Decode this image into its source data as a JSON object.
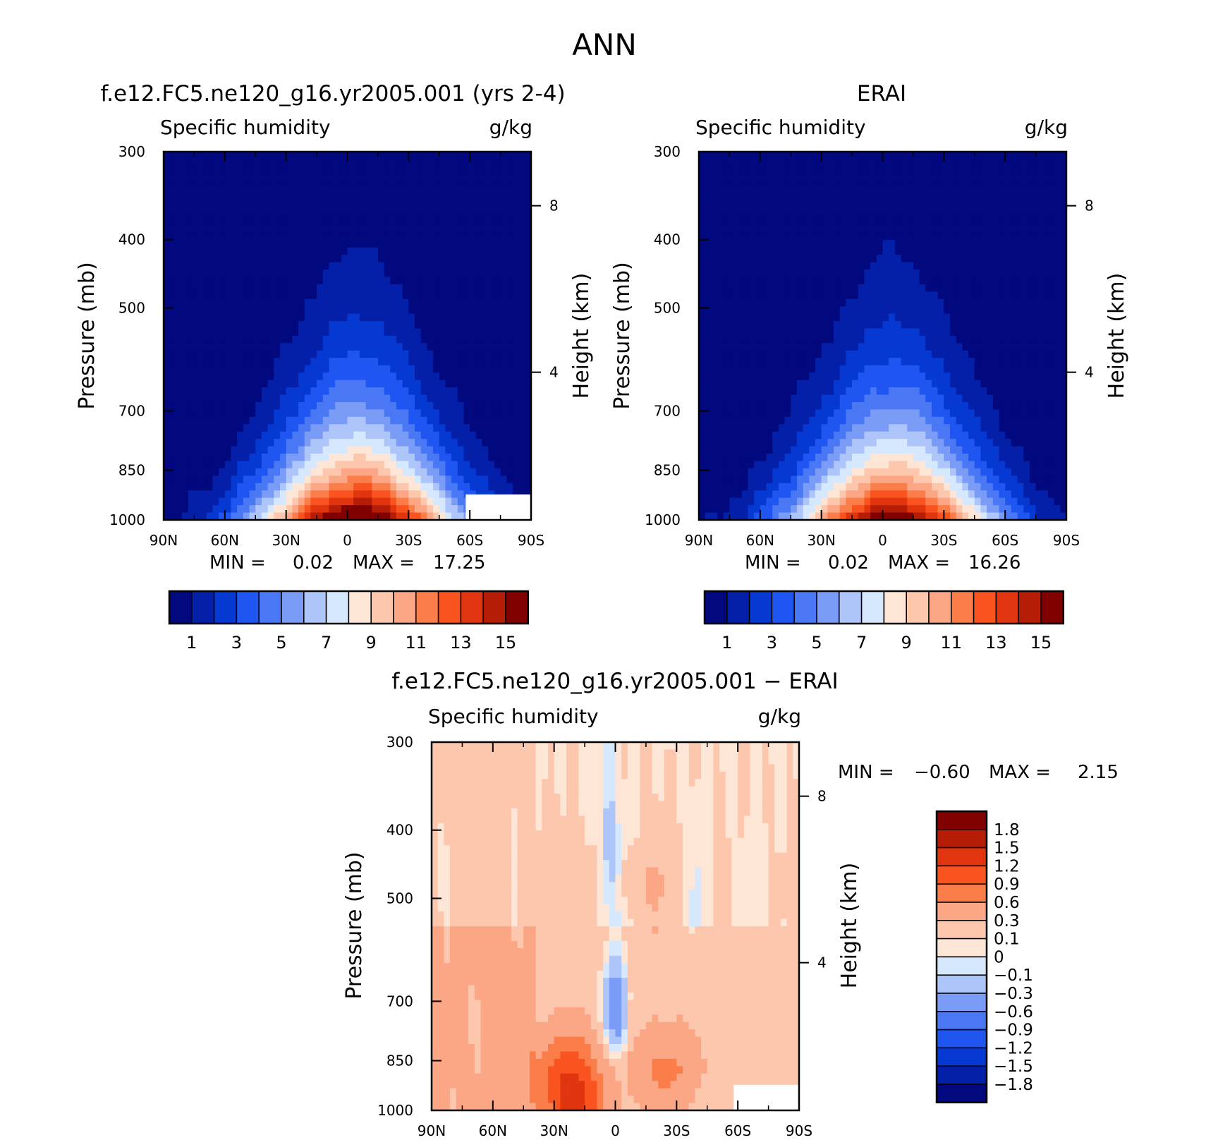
{
  "figure": {
    "title": "ANN"
  },
  "chart_data": [
    {
      "type": "contour",
      "id": "model",
      "title": "f.e12.FC5.ne120_g16.yr2005.001 (yrs 2-4)",
      "left_label": "Specific humidity",
      "right_label": "g/kg",
      "ylabel": "Pressure (mb)",
      "ylabel_right": "Height (km)",
      "x_ticks": [
        "90N",
        "60N",
        "30N",
        "0",
        "30S",
        "60S",
        "90S"
      ],
      "xlim": [
        90,
        -90
      ],
      "y_ticks": [
        300,
        400,
        500,
        700,
        850,
        1000
      ],
      "ylim": [
        1000,
        300
      ],
      "y_scale": "log",
      "height_ticks": [
        "8",
        "4"
      ],
      "min_label": "MIN =",
      "min_value": "0.02",
      "max_label": "MAX =",
      "max_value": "17.25",
      "peak_value": 17.25,
      "colorbar_labels": [
        "1",
        "3",
        "5",
        "7",
        "9",
        "11",
        "13",
        "15"
      ],
      "colorbar_orientation": "horizontal"
    },
    {
      "type": "contour",
      "id": "obs",
      "title": "ERAI",
      "left_label": "Specific humidity",
      "right_label": "g/kg",
      "ylabel": "Pressure (mb)",
      "ylabel_right": "Height (km)",
      "x_ticks": [
        "90N",
        "60N",
        "30N",
        "0",
        "30S",
        "60S",
        "90S"
      ],
      "xlim": [
        90,
        -90
      ],
      "y_ticks": [
        300,
        400,
        500,
        700,
        850,
        1000
      ],
      "ylim": [
        1000,
        300
      ],
      "y_scale": "log",
      "height_ticks": [
        "8",
        "4"
      ],
      "min_label": "MIN =",
      "min_value": "0.02",
      "max_label": "MAX =",
      "max_value": "16.26",
      "peak_value": 16.26,
      "colorbar_labels": [
        "1",
        "3",
        "5",
        "7",
        "9",
        "11",
        "13",
        "15"
      ],
      "colorbar_orientation": "horizontal"
    },
    {
      "type": "contour",
      "id": "diff",
      "title": "f.e12.FC5.ne120_g16.yr2005.001 − ERAI",
      "left_label": "Specific humidity",
      "right_label": "g/kg",
      "ylabel": "Pressure (mb)",
      "ylabel_right": "Height (km)",
      "x_ticks": [
        "90N",
        "60N",
        "30N",
        "0",
        "30S",
        "60S",
        "90S"
      ],
      "xlim": [
        90,
        -90
      ],
      "y_ticks": [
        300,
        400,
        500,
        700,
        850,
        1000
      ],
      "ylim": [
        1000,
        300
      ],
      "y_scale": "log",
      "height_ticks": [
        "8",
        "4"
      ],
      "min_label": "MIN =",
      "min_value": "−0.60",
      "max_label": "MAX =",
      "max_value": "2.15",
      "colorbar_labels": [
        "1.8",
        "1.5",
        "1.2",
        "0.9",
        "0.6",
        "0.3",
        "0.1",
        "0",
        "−0.1",
        "−0.3",
        "−0.6",
        "−0.9",
        "−1.2",
        "−1.5",
        "−1.8"
      ],
      "colorbar_orientation": "vertical"
    }
  ],
  "colors": {
    "sequential": [
      "#02097e",
      "#0420a8",
      "#0638d2",
      "#1f55f0",
      "#4a78f4",
      "#7a9cf6",
      "#aec5fa",
      "#d6e8fd",
      "#fde6d6",
      "#fcc7ad",
      "#fba684",
      "#fb7d4a",
      "#f9531f",
      "#e0350f",
      "#b61d07",
      "#810101"
    ],
    "diverging": [
      "#810101",
      "#b61d07",
      "#e0350f",
      "#f9531f",
      "#fb7d4a",
      "#fba684",
      "#fcc7ad",
      "#fde6d6",
      "#d6e8fd",
      "#aec5fa",
      "#7a9cf6",
      "#4a78f4",
      "#1f55f0",
      "#0638d2",
      "#0420a8",
      "#02097e"
    ]
  }
}
